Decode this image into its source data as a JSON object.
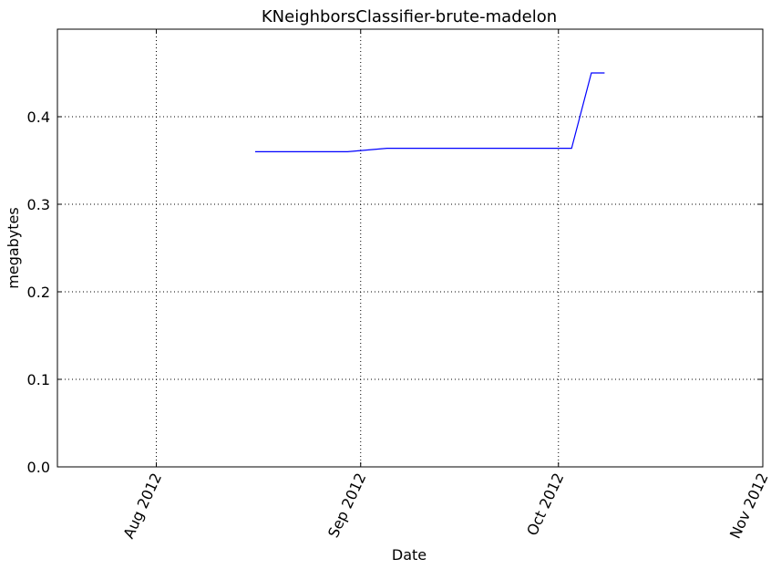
{
  "chart_data": {
    "type": "line",
    "title": "KNeighborsClassifier-brute-madelon",
    "xlabel": "Date",
    "ylabel": "megabytes",
    "xlim": [
      "2012-07-17",
      "2012-11-01"
    ],
    "ylim": [
      0.0,
      0.5
    ],
    "grid": true,
    "x_ticks": [
      {
        "date": "2012-08-01",
        "label": "Aug 2012"
      },
      {
        "date": "2012-09-01",
        "label": "Sep 2012"
      },
      {
        "date": "2012-10-01",
        "label": "Oct 2012"
      },
      {
        "date": "2012-11-01",
        "label": "Nov 2012"
      }
    ],
    "y_ticks": [
      {
        "value": 0.0,
        "label": "0.0"
      },
      {
        "value": 0.1,
        "label": "0.1"
      },
      {
        "value": 0.2,
        "label": "0.2"
      },
      {
        "value": 0.3,
        "label": "0.3"
      },
      {
        "value": 0.4,
        "label": "0.4"
      }
    ],
    "series": [
      {
        "color": "#0000ff",
        "x": [
          "2012-08-16",
          "2012-08-30",
          "2012-09-05",
          "2012-10-03",
          "2012-10-06",
          "2012-10-08"
        ],
        "y": [
          0.36,
          0.36,
          0.364,
          0.364,
          0.45,
          0.45
        ]
      }
    ]
  }
}
